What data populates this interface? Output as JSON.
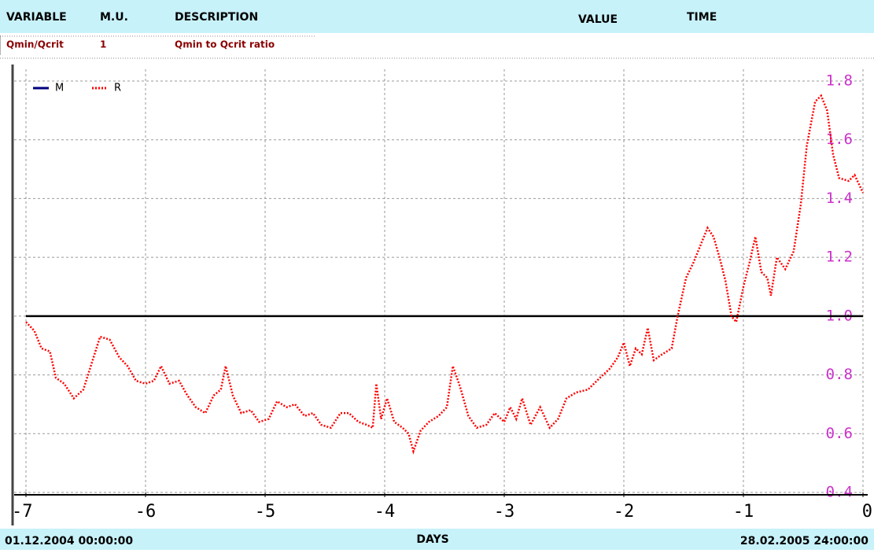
{
  "header": {
    "columns": [
      "VARIABLE",
      "M.U.",
      "DESCRIPTION",
      "VALUE",
      "TIME"
    ],
    "row": [
      "Qmin/Qcrit",
      "1",
      "Qmin to Qcrit ratio"
    ]
  },
  "footer": {
    "start": "01.12.2004 00:00:00",
    "end": "28.02.2005 24:00:00"
  },
  "chart_data": {
    "type": "line",
    "xlabel": "DAYS",
    "xlim": [
      -7,
      0
    ],
    "ylim": [
      0.4,
      1.8
    ],
    "xticks": [
      -7,
      -6,
      -5,
      -4,
      -3,
      -2,
      -1,
      0
    ],
    "yticks": [
      0.4,
      0.6,
      0.8,
      {
        "value": 1.0,
        "label": "1.0"
      },
      1.2,
      1.4,
      1.6,
      1.8
    ],
    "grid": true,
    "legend": "top-left",
    "series": [
      {
        "name": "M",
        "color": "#000080",
        "style": "solid",
        "x": [
          -7,
          0
        ],
        "values": [
          1,
          1
        ]
      },
      {
        "name": "R",
        "color": "#ff0000",
        "style": "dotted",
        "x": [
          -7.0,
          -6.93,
          -6.87,
          -6.8,
          -6.75,
          -6.68,
          -6.6,
          -6.52,
          -6.45,
          -6.38,
          -6.3,
          -6.22,
          -6.15,
          -6.08,
          -6.0,
          -5.93,
          -5.87,
          -5.8,
          -5.72,
          -5.65,
          -5.58,
          -5.5,
          -5.43,
          -5.37,
          -5.33,
          -5.27,
          -5.2,
          -5.12,
          -5.05,
          -4.97,
          -4.9,
          -4.82,
          -4.75,
          -4.67,
          -4.6,
          -4.53,
          -4.45,
          -4.37,
          -4.3,
          -4.22,
          -4.15,
          -4.1,
          -4.07,
          -4.03,
          -3.98,
          -3.92,
          -3.85,
          -3.8,
          -3.76,
          -3.7,
          -3.63,
          -3.55,
          -3.48,
          -3.43,
          -3.37,
          -3.3,
          -3.23,
          -3.15,
          -3.08,
          -3.0,
          -2.95,
          -2.9,
          -2.85,
          -2.78,
          -2.7,
          -2.62,
          -2.55,
          -2.48,
          -2.4,
          -2.3,
          -2.2,
          -2.12,
          -2.05,
          -2.0,
          -1.95,
          -1.9,
          -1.85,
          -1.8,
          -1.75,
          -1.68,
          -1.6,
          -1.55,
          -1.48,
          -1.42,
          -1.35,
          -1.3,
          -1.25,
          -1.2,
          -1.15,
          -1.1,
          -1.06,
          -1.0,
          -0.95,
          -0.9,
          -0.85,
          -0.8,
          -0.77,
          -0.72,
          -0.65,
          -0.58,
          -0.52,
          -0.47,
          -0.4,
          -0.35,
          -0.3,
          -0.25,
          -0.2,
          -0.12,
          -0.07,
          0
        ],
        "values": [
          0.98,
          0.95,
          0.89,
          0.88,
          0.79,
          0.77,
          0.72,
          0.75,
          0.84,
          0.93,
          0.92,
          0.86,
          0.83,
          0.78,
          0.77,
          0.78,
          0.83,
          0.77,
          0.78,
          0.73,
          0.69,
          0.67,
          0.73,
          0.75,
          0.83,
          0.73,
          0.67,
          0.68,
          0.64,
          0.65,
          0.71,
          0.69,
          0.7,
          0.66,
          0.67,
          0.63,
          0.62,
          0.67,
          0.67,
          0.64,
          0.63,
          0.62,
          0.77,
          0.65,
          0.72,
          0.64,
          0.62,
          0.6,
          0.54,
          0.61,
          0.64,
          0.66,
          0.69,
          0.83,
          0.76,
          0.66,
          0.62,
          0.63,
          0.67,
          0.64,
          0.69,
          0.65,
          0.72,
          0.63,
          0.69,
          0.62,
          0.65,
          0.72,
          0.74,
          0.75,
          0.79,
          0.82,
          0.86,
          0.91,
          0.83,
          0.89,
          0.87,
          0.96,
          0.85,
          0.87,
          0.89,
          1.0,
          1.13,
          1.18,
          1.25,
          1.3,
          1.27,
          1.2,
          1.12,
          1.0,
          0.98,
          1.1,
          1.18,
          1.27,
          1.15,
          1.13,
          1.07,
          1.2,
          1.16,
          1.22,
          1.38,
          1.58,
          1.73,
          1.75,
          1.7,
          1.55,
          1.47,
          1.46,
          1.48,
          1.42
        ]
      }
    ]
  }
}
